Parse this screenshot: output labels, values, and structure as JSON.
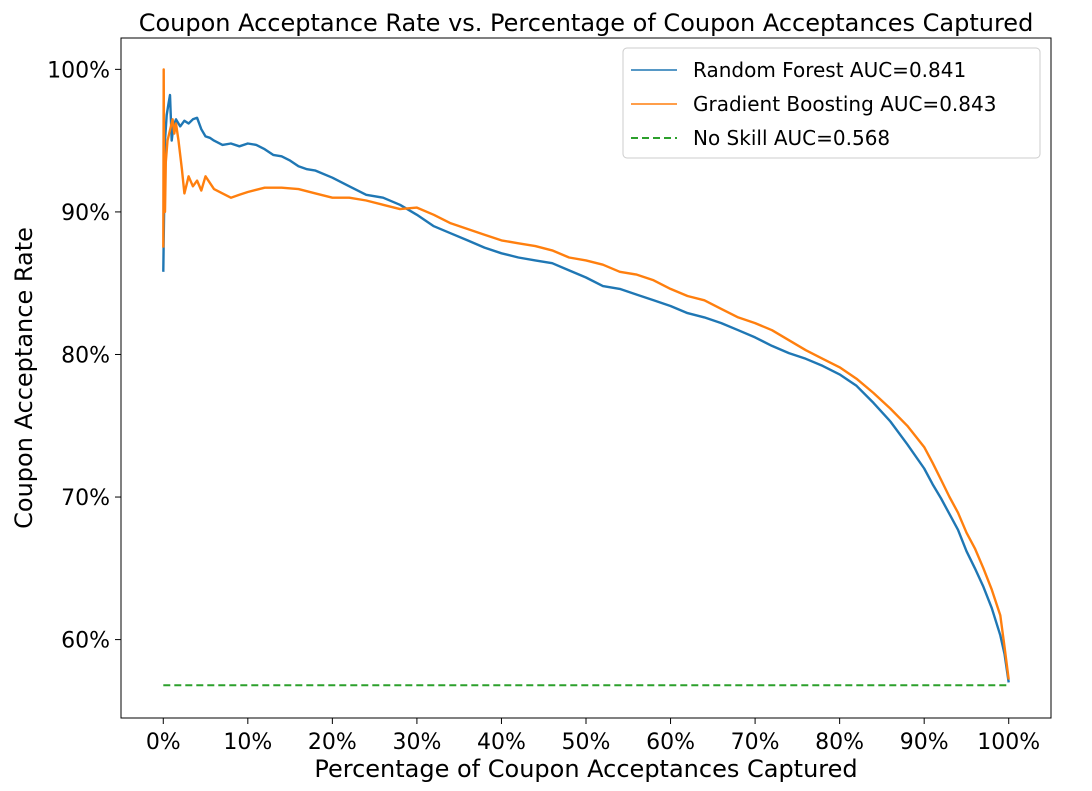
{
  "chart_data": {
    "type": "line",
    "title": "Coupon Acceptance Rate vs. Percentage of Coupon Acceptances Captured",
    "xlabel": "Percentage of Coupon Acceptances Captured",
    "ylabel": "Coupon Acceptance Rate",
    "xlim": [
      -0.05,
      1.05
    ],
    "ylim": [
      0.545,
      1.022
    ],
    "xticks": [
      0,
      0.1,
      0.2,
      0.3,
      0.4,
      0.5,
      0.6,
      0.7,
      0.8,
      0.9,
      1.0
    ],
    "xtick_labels": [
      "0%",
      "10%",
      "20%",
      "30%",
      "40%",
      "50%",
      "60%",
      "70%",
      "80%",
      "90%",
      "100%"
    ],
    "yticks": [
      0.6,
      0.7,
      0.8,
      0.9,
      1.0
    ],
    "ytick_labels": [
      "60%",
      "70%",
      "80%",
      "90%",
      "100%"
    ],
    "grid": false,
    "legend_position": "top-right",
    "series": [
      {
        "name": "Random Forest AUC=0.841",
        "color": "#1f77b4",
        "style": "solid",
        "x": [
          0.0,
          0.0005,
          0.001,
          0.002,
          0.004,
          0.006,
          0.008,
          0.01,
          0.012,
          0.015,
          0.02,
          0.025,
          0.03,
          0.035,
          0.04,
          0.045,
          0.05,
          0.055,
          0.06,
          0.07,
          0.08,
          0.09,
          0.1,
          0.11,
          0.12,
          0.13,
          0.14,
          0.15,
          0.16,
          0.17,
          0.18,
          0.2,
          0.22,
          0.24,
          0.26,
          0.28,
          0.3,
          0.32,
          0.34,
          0.36,
          0.38,
          0.4,
          0.42,
          0.44,
          0.46,
          0.48,
          0.5,
          0.52,
          0.54,
          0.56,
          0.58,
          0.6,
          0.62,
          0.64,
          0.66,
          0.68,
          0.7,
          0.72,
          0.74,
          0.76,
          0.78,
          0.8,
          0.82,
          0.84,
          0.86,
          0.88,
          0.9,
          0.91,
          0.92,
          0.93,
          0.94,
          0.95,
          0.96,
          0.97,
          0.98,
          0.99,
          0.995,
          1.0
        ],
        "y": [
          0.858,
          0.88,
          0.9,
          0.95,
          0.968,
          0.975,
          0.982,
          0.95,
          0.96,
          0.965,
          0.96,
          0.964,
          0.962,
          0.965,
          0.966,
          0.958,
          0.953,
          0.952,
          0.95,
          0.947,
          0.948,
          0.946,
          0.948,
          0.947,
          0.944,
          0.94,
          0.939,
          0.936,
          0.932,
          0.93,
          0.929,
          0.924,
          0.918,
          0.912,
          0.91,
          0.905,
          0.898,
          0.89,
          0.885,
          0.88,
          0.875,
          0.871,
          0.868,
          0.866,
          0.864,
          0.859,
          0.854,
          0.848,
          0.846,
          0.842,
          0.838,
          0.834,
          0.829,
          0.826,
          0.822,
          0.817,
          0.812,
          0.806,
          0.801,
          0.797,
          0.792,
          0.786,
          0.778,
          0.766,
          0.753,
          0.737,
          0.72,
          0.709,
          0.699,
          0.688,
          0.677,
          0.662,
          0.65,
          0.637,
          0.622,
          0.603,
          0.59,
          0.57
        ]
      },
      {
        "name": "Gradient Boosting AUC=0.843",
        "color": "#ff7f0e",
        "style": "solid",
        "x": [
          0.0,
          0.0005,
          0.001,
          0.002,
          0.003,
          0.005,
          0.007,
          0.009,
          0.011,
          0.013,
          0.015,
          0.018,
          0.02,
          0.022,
          0.025,
          0.028,
          0.03,
          0.035,
          0.04,
          0.045,
          0.05,
          0.06,
          0.07,
          0.08,
          0.09,
          0.1,
          0.12,
          0.14,
          0.16,
          0.18,
          0.2,
          0.22,
          0.24,
          0.26,
          0.28,
          0.3,
          0.32,
          0.34,
          0.36,
          0.38,
          0.4,
          0.42,
          0.44,
          0.46,
          0.48,
          0.5,
          0.52,
          0.54,
          0.56,
          0.58,
          0.6,
          0.62,
          0.64,
          0.66,
          0.68,
          0.7,
          0.72,
          0.74,
          0.76,
          0.78,
          0.8,
          0.82,
          0.84,
          0.86,
          0.88,
          0.9,
          0.91,
          0.92,
          0.93,
          0.94,
          0.95,
          0.96,
          0.97,
          0.98,
          0.99,
          0.995,
          1.0
        ],
        "y": [
          0.875,
          1.0,
          0.92,
          0.9,
          0.935,
          0.95,
          0.955,
          0.96,
          0.965,
          0.955,
          0.962,
          0.95,
          0.94,
          0.93,
          0.913,
          0.92,
          0.925,
          0.918,
          0.922,
          0.915,
          0.925,
          0.916,
          0.913,
          0.91,
          0.912,
          0.914,
          0.917,
          0.917,
          0.916,
          0.913,
          0.91,
          0.91,
          0.908,
          0.905,
          0.902,
          0.903,
          0.898,
          0.892,
          0.888,
          0.884,
          0.88,
          0.878,
          0.876,
          0.873,
          0.868,
          0.866,
          0.863,
          0.858,
          0.856,
          0.852,
          0.846,
          0.841,
          0.838,
          0.832,
          0.826,
          0.822,
          0.817,
          0.81,
          0.803,
          0.797,
          0.791,
          0.783,
          0.773,
          0.762,
          0.75,
          0.735,
          0.724,
          0.712,
          0.7,
          0.689,
          0.675,
          0.664,
          0.65,
          0.635,
          0.617,
          0.595,
          0.572
        ]
      },
      {
        "name": "No Skill AUC=0.568",
        "color": "#2ca02c",
        "style": "dashed",
        "x": [
          0.0,
          1.0
        ],
        "y": [
          0.568,
          0.568
        ]
      }
    ]
  }
}
